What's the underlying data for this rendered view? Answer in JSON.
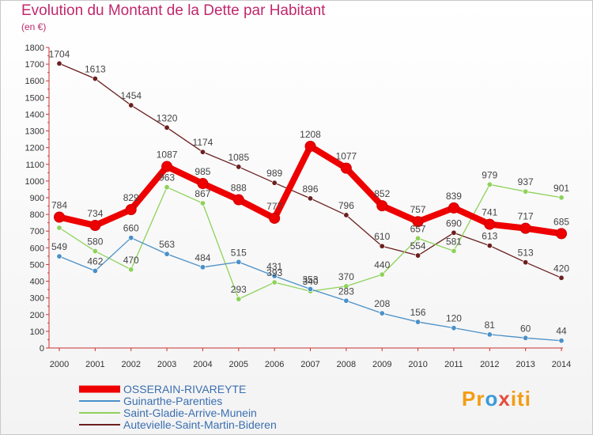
{
  "title": "Evolution du Montant de la Dette par Habitant",
  "unit": "(en €)",
  "logo": "Proxiti",
  "chart_data": {
    "type": "line",
    "x": [
      "2000",
      "2001",
      "2002",
      "2003",
      "2004",
      "2005",
      "2006",
      "2007",
      "2008",
      "2009",
      "2010",
      "2011",
      "2012",
      "2013",
      "2014"
    ],
    "ylim": [
      0,
      1800
    ],
    "yticks": [
      0,
      100,
      200,
      300,
      400,
      500,
      600,
      700,
      800,
      900,
      1000,
      1100,
      1200,
      1300,
      1400,
      1500,
      1600,
      1700,
      1800
    ],
    "grid": false,
    "legend_position": "bottom-left",
    "series": [
      {
        "name": "Autevielle-Saint-Martin-Bideren",
        "color": "#6b1f1f",
        "values": [
          1704,
          1613,
          1454,
          1320,
          1174,
          1085,
          989,
          896,
          796,
          610,
          554,
          690,
          613,
          513,
          420
        ]
      },
      {
        "name": "Saint-Gladie-Arrive-Munein",
        "color": "#8ed25a",
        "values": [
          720,
          580,
          470,
          963,
          867,
          293,
          393,
          340,
          370,
          440,
          657,
          581,
          979,
          937,
          901
        ]
      },
      {
        "name": "Guinarthe-Parenties",
        "color": "#4a90c8",
        "values": [
          549,
          462,
          660,
          563,
          484,
          515,
          431,
          353,
          283,
          208,
          156,
          120,
          81,
          60,
          44
        ]
      },
      {
        "name": "OSSERAIN-RIVAREYTE",
        "color": "#ee0000",
        "values": [
          784,
          734,
          829,
          1087,
          985,
          888,
          777,
          1208,
          1077,
          852,
          757,
          839,
          741,
          717,
          685
        ]
      }
    ],
    "data_labels": [
      [
        "1704",
        "1613",
        "1454",
        "1320",
        "1174",
        "1085",
        "989",
        "896",
        "796",
        "610",
        "554",
        "690",
        "613",
        "513",
        "420"
      ],
      [
        "",
        "580",
        "470",
        "963",
        "867",
        "293",
        "393",
        "340",
        "370",
        "440",
        "657",
        "581",
        "979",
        "937",
        "901"
      ],
      [
        "549",
        "462",
        "660",
        "563",
        "484",
        "515",
        "431",
        "353",
        "283",
        "208",
        "156",
        "120",
        "81",
        "60",
        "44"
      ],
      [
        "784",
        "734",
        "829",
        "1087",
        "985",
        "888",
        "777",
        "1208",
        "1077",
        "852",
        "757",
        "839",
        "741",
        "717",
        "685"
      ]
    ],
    "legend": [
      "OSSERAIN-RIVAREYTE",
      "Guinarthe-Parenties",
      "Saint-Gladie-Arrive-Munein",
      "Autevielle-Saint-Martin-Bideren"
    ]
  }
}
